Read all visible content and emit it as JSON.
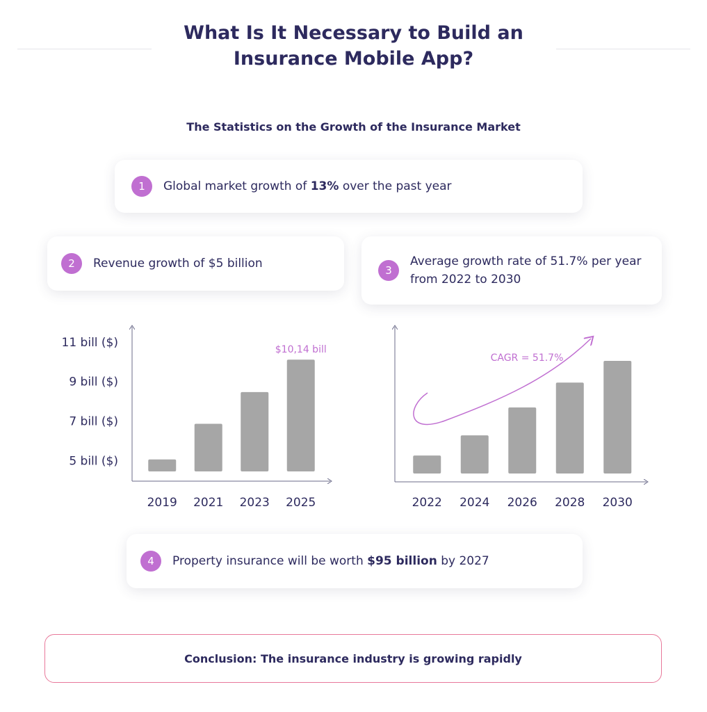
{
  "header": {
    "title_line1": "What Is It Necessary to Build an",
    "title_line2": "Insurance Mobile App?",
    "subtitle": "The Statistics on the Growth of the Insurance Market"
  },
  "stats": [
    {
      "number": "1",
      "text_parts": [
        "Global market growth of ",
        "13%",
        " over the past year"
      ]
    },
    {
      "number": "2",
      "text_parts": [
        "Revenue growth of $5 billion"
      ]
    },
    {
      "number": "3",
      "text_parts": [
        "Average growth rate of 51.7% per year from 2022 to 2030"
      ]
    },
    {
      "number": "4",
      "text_parts": [
        "Property insurance will be worth ",
        "$95 billion",
        " by 2027"
      ]
    }
  ],
  "chart_data": [
    {
      "type": "bar",
      "categories": [
        "2019",
        "2021",
        "2023",
        "2025"
      ],
      "values": [
        5.1,
        6.9,
        8.5,
        10.14
      ],
      "value_labels": [
        null,
        null,
        null,
        "$10,14 bill"
      ],
      "color": "#a6a6a6",
      "ylim": [
        4,
        11.8
      ],
      "yticks": [
        {
          "value": 5,
          "label": "5 bill ($)"
        },
        {
          "value": 7,
          "label": "7 bill ($)"
        },
        {
          "value": 9,
          "label": "9 bill ($)"
        },
        {
          "value": 11,
          "label": "11 bill ($)"
        }
      ],
      "grid": false
    },
    {
      "type": "bar",
      "categories": [
        "2022",
        "2024",
        "2026",
        "2028",
        "2030"
      ],
      "values": [
        17,
        30,
        48,
        64,
        78
      ],
      "color": "#a6a6a6",
      "ylim": [
        0,
        100
      ],
      "annotation": "CAGR = 51.7%",
      "grid": false
    }
  ],
  "conclusion": "Conclusion: The insurance industry is growing rapidly"
}
